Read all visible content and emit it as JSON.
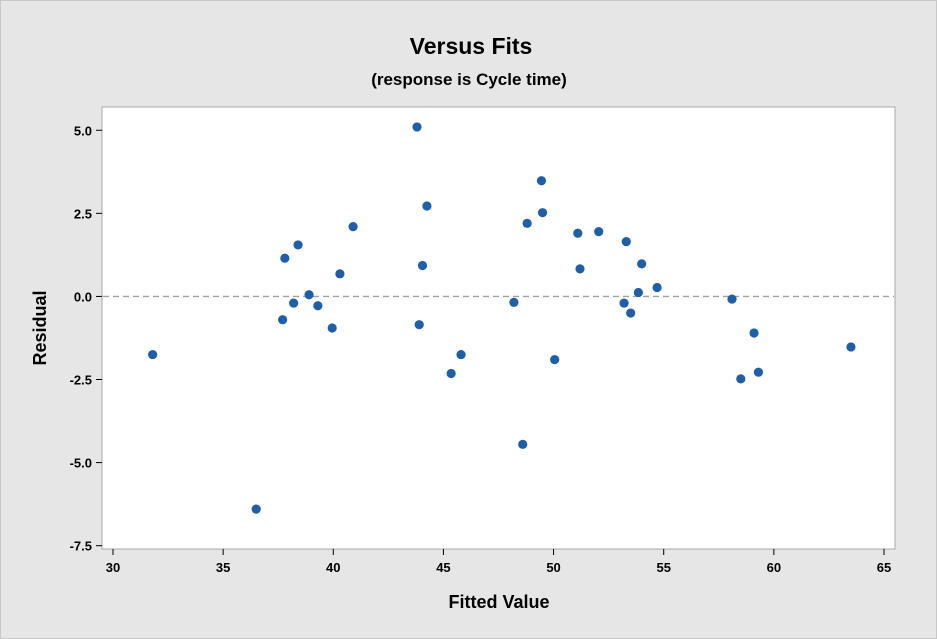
{
  "chart_data": {
    "type": "scatter",
    "title": "Versus Fits",
    "subtitle": "(response is Cycle time)",
    "xlabel": "Fitted Value",
    "ylabel": "Residual",
    "xlim": [
      29.5,
      65.5
    ],
    "ylim": [
      -7.6,
      5.7
    ],
    "xticks": [
      30,
      35,
      40,
      45,
      50,
      55,
      60,
      65
    ],
    "xtick_labels": [
      "30",
      "35",
      "40",
      "45",
      "50",
      "55",
      "60",
      "65"
    ],
    "yticks": [
      5.0,
      2.5,
      0.0,
      -2.5,
      -5.0,
      -7.5
    ],
    "ytick_labels": [
      "5.0",
      "2.5",
      "0.0",
      "-2.5",
      "-5.0",
      "-7.5"
    ],
    "reference_line": 0.0,
    "grid": false,
    "colors": {
      "point": "#1f5fa8",
      "reference_line": "#a0a0a0",
      "plot_bg": "#ffffff",
      "frame_bg": "#e6e6e6"
    },
    "points": [
      [
        31.8,
        -1.75
      ],
      [
        36.5,
        -6.4
      ],
      [
        37.7,
        -0.7
      ],
      [
        37.8,
        1.15
      ],
      [
        38.2,
        -0.2
      ],
      [
        38.4,
        1.55
      ],
      [
        38.9,
        0.05
      ],
      [
        39.3,
        -0.28
      ],
      [
        39.95,
        -0.95
      ],
      [
        40.3,
        0.68
      ],
      [
        40.9,
        2.1
      ],
      [
        43.8,
        5.1
      ],
      [
        43.9,
        -0.85
      ],
      [
        44.05,
        0.93
      ],
      [
        44.25,
        2.72
      ],
      [
        45.35,
        -2.32
      ],
      [
        45.8,
        -1.75
      ],
      [
        48.2,
        -0.18
      ],
      [
        48.6,
        -4.45
      ],
      [
        48.8,
        2.2
      ],
      [
        49.45,
        3.48
      ],
      [
        49.5,
        2.52
      ],
      [
        50.05,
        -1.9
      ],
      [
        51.1,
        1.9
      ],
      [
        51.2,
        0.83
      ],
      [
        52.05,
        1.95
      ],
      [
        53.2,
        -0.2
      ],
      [
        53.3,
        1.65
      ],
      [
        53.5,
        -0.5
      ],
      [
        53.85,
        0.12
      ],
      [
        54.0,
        0.98
      ],
      [
        54.7,
        0.27
      ],
      [
        58.1,
        -0.08
      ],
      [
        58.5,
        -2.48
      ],
      [
        59.1,
        -1.1
      ],
      [
        59.3,
        -2.28
      ],
      [
        63.5,
        -1.52
      ]
    ]
  }
}
